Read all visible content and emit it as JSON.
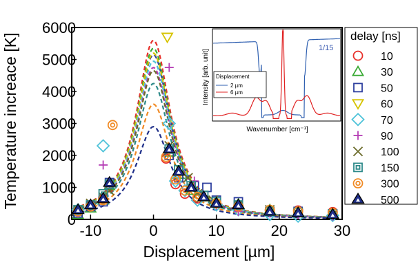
{
  "chart_data": {
    "type": "scatter",
    "xlabel": "Displacement [µm]",
    "ylabel": "Temperature increace [K]",
    "xlim": [
      -13,
      30
    ],
    "ylim": [
      0,
      6000
    ],
    "xticks": [
      "-10",
      "0",
      "10",
      "20",
      "30"
    ],
    "yticks": [
      "0",
      "1000",
      "2000",
      "3000",
      "4000",
      "5000",
      "6000"
    ],
    "legend": {
      "title": "delay [ns]",
      "placement": "right"
    },
    "series": [
      {
        "name": "10",
        "marker": "circle",
        "color": "#e8302a",
        "peak": 5600,
        "points": [
          [
            -12,
            250
          ],
          [
            -10,
            450
          ],
          [
            -8,
            650
          ],
          [
            -7,
            1000
          ],
          [
            2,
            1900
          ],
          [
            3.5,
            1100
          ],
          [
            5,
            800
          ],
          [
            7,
            650
          ],
          [
            10,
            500
          ],
          [
            13.5,
            420
          ],
          [
            18.5,
            280
          ],
          [
            23,
            280
          ],
          [
            28.5,
            230
          ]
        ]
      },
      {
        "name": "30",
        "marker": "triangle",
        "color": "#3aaa35",
        "peak": 5350,
        "points": [
          [
            -12,
            150
          ],
          [
            -10,
            350
          ],
          [
            -8,
            600
          ],
          [
            -7,
            1050
          ],
          [
            2.5,
            2100
          ],
          [
            4,
            1400
          ],
          [
            6,
            900
          ],
          [
            8,
            700
          ],
          [
            10,
            550
          ],
          [
            13.5,
            480
          ],
          [
            18.5,
            300
          ],
          [
            23,
            200
          ],
          [
            28.5,
            180
          ]
        ]
      },
      {
        "name": "50",
        "marker": "square",
        "color": "#2e3f9e",
        "peak": 5150,
        "points": [
          [
            -12,
            200
          ],
          [
            -10,
            400
          ],
          [
            -8,
            550
          ],
          [
            -7,
            1150
          ],
          [
            2.5,
            2000
          ],
          [
            4,
            1300
          ],
          [
            6.5,
            1050
          ],
          [
            8.5,
            1000
          ],
          [
            10,
            600
          ],
          [
            13.5,
            550
          ],
          [
            18.5,
            240
          ],
          [
            23,
            250
          ],
          [
            28.5,
            170
          ]
        ]
      },
      {
        "name": "60",
        "marker": "invtri",
        "color": "#d6c300",
        "peak": 5200,
        "points": [
          [
            2.2,
            5700
          ]
        ]
      },
      {
        "name": "70",
        "marker": "diamond",
        "color": "#4fc3d9",
        "peak": 4950,
        "points": [
          [
            -12,
            300
          ],
          [
            -8,
            2300
          ],
          [
            2.5,
            3000
          ],
          [
            3.5,
            1200
          ],
          [
            5,
            900
          ],
          [
            7,
            600
          ],
          [
            10,
            450
          ],
          [
            13.5,
            300
          ],
          [
            18.5,
            150
          ],
          [
            23,
            100
          ],
          [
            28.5,
            120
          ]
        ]
      },
      {
        "name": "90",
        "marker": "plus",
        "color": "#b53db5",
        "peak": 4750,
        "points": [
          [
            -12,
            200
          ],
          [
            -8,
            1700
          ],
          [
            2.5,
            4750
          ],
          [
            4,
            1450
          ],
          [
            6.5,
            1200
          ],
          [
            10,
            450
          ],
          [
            13.5,
            250
          ],
          [
            18.5,
            200
          ],
          [
            23,
            150
          ],
          [
            28.5,
            100
          ]
        ]
      },
      {
        "name": "100",
        "marker": "x",
        "color": "#6b6b2a",
        "peak": 4650,
        "points": [
          [
            -12,
            300
          ],
          [
            -10,
            500
          ],
          [
            -8,
            700
          ],
          [
            -7,
            900
          ],
          [
            2.5,
            2300
          ],
          [
            4,
            1600
          ],
          [
            5.5,
            1300
          ],
          [
            7,
            800
          ],
          [
            9.5,
            600
          ],
          [
            13.5,
            450
          ],
          [
            18.5,
            300
          ],
          [
            23,
            200
          ],
          [
            28.5,
            150
          ]
        ]
      },
      {
        "name": "150",
        "marker": "sqdot",
        "color": "#2e8a8a",
        "peak": 4250,
        "points": [
          [
            -12,
            300
          ],
          [
            -10,
            450
          ],
          [
            -8,
            800
          ],
          [
            -7,
            1100
          ],
          [
            2.5,
            2200
          ],
          [
            4,
            1550
          ],
          [
            6,
            1050
          ],
          [
            8,
            750
          ],
          [
            10,
            550
          ],
          [
            13.5,
            450
          ],
          [
            18.5,
            250
          ],
          [
            23,
            220
          ],
          [
            28.5,
            170
          ]
        ]
      },
      {
        "name": "300",
        "marker": "bullseye",
        "color": "#f08a24",
        "peak": 3600,
        "points": [
          [
            -12,
            250
          ],
          [
            -10,
            400
          ],
          [
            -8,
            600
          ],
          [
            -6.5,
            2950
          ],
          [
            2,
            1950
          ],
          [
            3.5,
            1250
          ],
          [
            5,
            900
          ],
          [
            7,
            700
          ],
          [
            10,
            500
          ],
          [
            13.5,
            400
          ],
          [
            18.5,
            300
          ],
          [
            23,
            250
          ],
          [
            28.5,
            200
          ]
        ]
      },
      {
        "name": "500",
        "marker": "tridot",
        "color": "#1f2f8a",
        "peak": 2900,
        "points": [
          [
            -12,
            300
          ],
          [
            -10,
            450
          ],
          [
            -8,
            650
          ],
          [
            -7,
            1150
          ],
          [
            2.5,
            2200
          ],
          [
            4,
            1500
          ],
          [
            6,
            1000
          ],
          [
            8,
            700
          ],
          [
            10,
            500
          ],
          [
            13.5,
            450
          ],
          [
            18.5,
            250
          ],
          [
            23,
            200
          ],
          [
            28.5,
            150
          ]
        ]
      }
    ],
    "fit": {
      "shape": "lorentzian",
      "center": 0,
      "hwhm": 3.3,
      "baseline": 0
    },
    "inset": {
      "xlabel": "Wavenumber [cm⁻¹]",
      "ylabel": "Intensity [arb. unit]",
      "annotation": "1/15",
      "legend_title": "Displacement",
      "series": [
        {
          "name": "2 µm",
          "color": "#2e5fb0"
        },
        {
          "name": "6 µm",
          "color": "#e02020"
        }
      ]
    }
  }
}
